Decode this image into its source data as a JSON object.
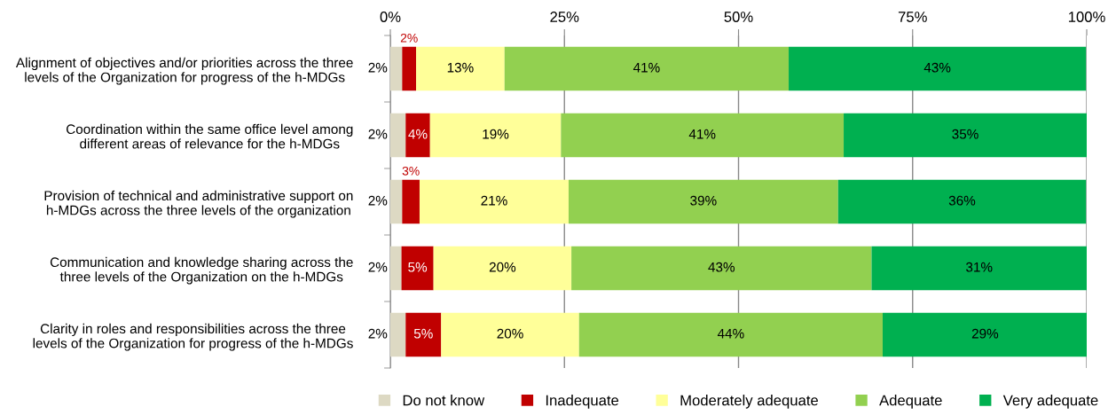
{
  "chart_data": {
    "type": "bar",
    "orientation": "horizontal",
    "stacked": true,
    "categories": [
      "Alignment of objectives and/or priorities across the three levels of the Organization for progress of the h-MDGs",
      "Coordination within the same office level among different areas of relevance for the h-MDGs",
      "Provision of technical and administrative support on h-MDGs across the three levels of the organization",
      "Communication and knowledge sharing across the three levels of the Organization on the h-MDGs",
      "Clarity in roles and responsibilities across the three levels of the Organization for progress of the h-MDGs"
    ],
    "series": [
      {
        "name": "Do not know",
        "color": "#ddd9c3",
        "values": [
          1.7,
          2.2,
          1.7,
          1.6,
          2.2
        ],
        "value_labels": [
          "2%",
          "2%",
          "2%",
          "2%",
          "2%"
        ]
      },
      {
        "name": "Inadequate",
        "color": "#c00000",
        "values": [
          2.0,
          3.5,
          2.5,
          4.6,
          5.1
        ],
        "value_labels": [
          "2%",
          "4%",
          "3%",
          "5%",
          "5%"
        ]
      },
      {
        "name": "Moderately adequate",
        "color": "#ffff99",
        "values": [
          12.7,
          18.8,
          21.4,
          19.8,
          19.8
        ],
        "value_labels": [
          "13%",
          "19%",
          "21%",
          "20%",
          "20%"
        ]
      },
      {
        "name": "Adequate",
        "color": "#92d050",
        "values": [
          40.8,
          40.6,
          38.7,
          43.1,
          43.6
        ],
        "value_labels": [
          "41%",
          "41%",
          "39%",
          "43%",
          "44%"
        ]
      },
      {
        "name": "Very adequate",
        "color": "#00b050",
        "values": [
          42.7,
          34.9,
          35.6,
          30.9,
          29.4
        ],
        "value_labels": [
          "43%",
          "35%",
          "36%",
          "31%",
          "29%"
        ]
      }
    ],
    "xlim": [
      0,
      100
    ],
    "xticks": [
      {
        "value": 0,
        "label": "0%"
      },
      {
        "value": 25,
        "label": "25%"
      },
      {
        "value": 50,
        "label": "50%"
      },
      {
        "value": 75,
        "label": "75%"
      },
      {
        "value": 100,
        "label": "100%"
      }
    ],
    "grid": "x",
    "legend": "bottom"
  }
}
